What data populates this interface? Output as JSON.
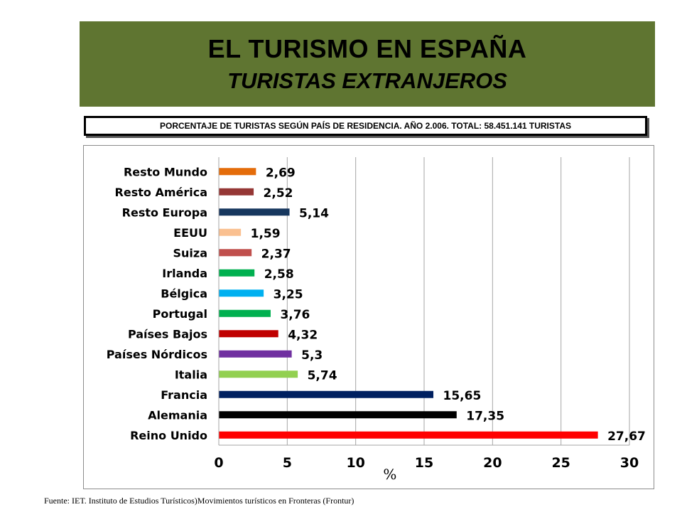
{
  "header": {
    "title": "EL TURISMO EN ESPAÑA",
    "subtitle": "TURISTAS EXTRANJEROS",
    "background": "#5f7531"
  },
  "caption": "PORCENTAJE DE TURISTAS SEGÚN PAÍS DE RESIDENCIA. AÑO 2.006. TOTAL: 58.451.141 TURISTAS",
  "source": "Fuente: IET. Instituto de Estudios Turísticos)Movimientos  turísticos en Fronteras (Frontur)",
  "chart_data": {
    "type": "bar",
    "orientation": "horizontal",
    "xlabel": "%",
    "xlim": [
      0,
      30
    ],
    "xticks": [
      0,
      5,
      10,
      15,
      20,
      25,
      30
    ],
    "grid": true,
    "legend": "none",
    "categories": [
      "Resto Mundo",
      "Resto América",
      "Resto Europa",
      "EEUU",
      "Suiza",
      "Irlanda",
      "Bélgica",
      "Portugal",
      "Países Bajos",
      "Países Nórdicos",
      "Italia",
      "Francia",
      "Alemania",
      "Reino Unido"
    ],
    "values": [
      2.69,
      2.52,
      5.14,
      1.59,
      2.37,
      2.58,
      3.25,
      3.76,
      4.32,
      5.3,
      5.74,
      15.65,
      17.35,
      27.67
    ],
    "data_labels": [
      "2,69",
      "2,52",
      "5,14",
      "1,59",
      "2,37",
      "2,58",
      "3,25",
      "3,76",
      "4,32",
      "5,3",
      "5,74",
      "15,65",
      "17,35",
      "27,67"
    ],
    "colors": [
      "#e46c0a",
      "#953735",
      "#17375e",
      "#fac090",
      "#c0504d",
      "#00b050",
      "#00b0f0",
      "#00b050",
      "#c00000",
      "#7030a0",
      "#92d050",
      "#002060",
      "#000000",
      "#ff0000"
    ]
  }
}
